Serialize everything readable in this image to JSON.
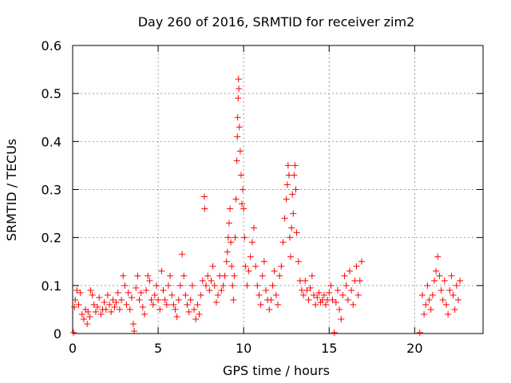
{
  "chart_data": {
    "type": "scatter",
    "title": "Day 260 of 2016, SRMTID for receiver zim2",
    "xlabel": "GPS time / hours",
    "ylabel": "SRMTID / TECUs",
    "xlim": [
      0,
      24
    ],
    "ylim": [
      0,
      0.6
    ],
    "xticks": [
      0,
      5,
      10,
      15,
      20
    ],
    "xtick_labels": [
      "0",
      "5",
      "10",
      "15",
      "20"
    ],
    "yticks": [
      0,
      0.1,
      0.2,
      0.3,
      0.4,
      0.5,
      0.6
    ],
    "ytick_labels": [
      "0",
      "0.1",
      "0.2",
      "0.3",
      "0.4",
      "0.5",
      "0.6"
    ],
    "grid": true,
    "marker": "+",
    "color": "#ff0000",
    "series": [
      {
        "name": "SRMTID",
        "points": [
          [
            0.05,
            0.002
          ],
          [
            0.1,
            0.055
          ],
          [
            0.15,
            0.07
          ],
          [
            0.25,
            0.09
          ],
          [
            0.35,
            0.06
          ],
          [
            0.45,
            0.085
          ],
          [
            0.55,
            0.04
          ],
          [
            0.65,
            0.03
          ],
          [
            0.75,
            0.05
          ],
          [
            0.85,
            0.02
          ],
          [
            0.9,
            0.045
          ],
          [
            1.0,
            0.035
          ],
          [
            1.05,
            0.09
          ],
          [
            1.15,
            0.08
          ],
          [
            1.25,
            0.06
          ],
          [
            1.35,
            0.045
          ],
          [
            1.45,
            0.055
          ],
          [
            1.55,
            0.075
          ],
          [
            1.65,
            0.04
          ],
          [
            1.75,
            0.05
          ],
          [
            1.85,
            0.065
          ],
          [
            1.95,
            0.05
          ],
          [
            2.05,
            0.08
          ],
          [
            2.15,
            0.06
          ],
          [
            2.25,
            0.045
          ],
          [
            2.35,
            0.07
          ],
          [
            2.45,
            0.055
          ],
          [
            2.55,
            0.065
          ],
          [
            2.65,
            0.085
          ],
          [
            2.75,
            0.05
          ],
          [
            2.85,
            0.07
          ],
          [
            2.95,
            0.12
          ],
          [
            3.05,
            0.1
          ],
          [
            3.15,
            0.06
          ],
          [
            3.25,
            0.085
          ],
          [
            3.35,
            0.05
          ],
          [
            3.45,
            0.075
          ],
          [
            3.55,
            0.02
          ],
          [
            3.6,
            0.005
          ],
          [
            3.7,
            0.095
          ],
          [
            3.8,
            0.12
          ],
          [
            3.9,
            0.07
          ],
          [
            4.0,
            0.085
          ],
          [
            4.1,
            0.055
          ],
          [
            4.2,
            0.04
          ],
          [
            4.3,
            0.09
          ],
          [
            4.4,
            0.12
          ],
          [
            4.5,
            0.11
          ],
          [
            4.6,
            0.07
          ],
          [
            4.7,
            0.06
          ],
          [
            4.8,
            0.08
          ],
          [
            4.9,
            0.1
          ],
          [
            5.0,
            0.07
          ],
          [
            5.1,
            0.05
          ],
          [
            5.2,
            0.13
          ],
          [
            5.3,
            0.09
          ],
          [
            5.4,
            0.07
          ],
          [
            5.5,
            0.06
          ],
          [
            5.6,
            0.1
          ],
          [
            5.7,
            0.12
          ],
          [
            5.8,
            0.08
          ],
          [
            5.9,
            0.06
          ],
          [
            6.0,
            0.05
          ],
          [
            6.1,
            0.035
          ],
          [
            6.2,
            0.07
          ],
          [
            6.3,
            0.1
          ],
          [
            6.4,
            0.165
          ],
          [
            6.5,
            0.12
          ],
          [
            6.6,
            0.08
          ],
          [
            6.7,
            0.06
          ],
          [
            6.8,
            0.045
          ],
          [
            6.9,
            0.07
          ],
          [
            7.0,
            0.1
          ],
          [
            7.1,
            0.05
          ],
          [
            7.2,
            0.03
          ],
          [
            7.3,
            0.06
          ],
          [
            7.4,
            0.04
          ],
          [
            7.5,
            0.08
          ],
          [
            7.6,
            0.11
          ],
          [
            7.7,
            0.285
          ],
          [
            7.72,
            0.26
          ],
          [
            7.8,
            0.1
          ],
          [
            7.9,
            0.12
          ],
          [
            8.0,
            0.09
          ],
          [
            8.1,
            0.11
          ],
          [
            8.2,
            0.14
          ],
          [
            8.3,
            0.1
          ],
          [
            8.4,
            0.065
          ],
          [
            8.5,
            0.08
          ],
          [
            8.6,
            0.12
          ],
          [
            8.7,
            0.09
          ],
          [
            8.8,
            0.1
          ],
          [
            8.9,
            0.12
          ],
          [
            9.0,
            0.15
          ],
          [
            9.05,
            0.17
          ],
          [
            9.1,
            0.2
          ],
          [
            9.15,
            0.23
          ],
          [
            9.2,
            0.26
          ],
          [
            9.25,
            0.19
          ],
          [
            9.3,
            0.14
          ],
          [
            9.35,
            0.1
          ],
          [
            9.4,
            0.07
          ],
          [
            9.45,
            0.12
          ],
          [
            9.5,
            0.2
          ],
          [
            9.55,
            0.28
          ],
          [
            9.6,
            0.36
          ],
          [
            9.63,
            0.41
          ],
          [
            9.65,
            0.45
          ],
          [
            9.68,
            0.49
          ],
          [
            9.7,
            0.53
          ],
          [
            9.72,
            0.51
          ],
          [
            9.75,
            0.43
          ],
          [
            9.8,
            0.38
          ],
          [
            9.85,
            0.33
          ],
          [
            9.9,
            0.27
          ],
          [
            9.95,
            0.3
          ],
          [
            10.0,
            0.26
          ],
          [
            10.05,
            0.2
          ],
          [
            10.1,
            0.14
          ],
          [
            10.2,
            0.1
          ],
          [
            10.3,
            0.13
          ],
          [
            10.4,
            0.16
          ],
          [
            10.5,
            0.19
          ],
          [
            10.6,
            0.22
          ],
          [
            10.7,
            0.14
          ],
          [
            10.8,
            0.1
          ],
          [
            10.9,
            0.08
          ],
          [
            11.0,
            0.06
          ],
          [
            11.1,
            0.12
          ],
          [
            11.2,
            0.15
          ],
          [
            11.3,
            0.09
          ],
          [
            11.4,
            0.07
          ],
          [
            11.5,
            0.05
          ],
          [
            11.6,
            0.07
          ],
          [
            11.7,
            0.1
          ],
          [
            11.8,
            0.13
          ],
          [
            11.9,
            0.08
          ],
          [
            12.0,
            0.06
          ],
          [
            12.1,
            0.12
          ],
          [
            12.2,
            0.14
          ],
          [
            12.3,
            0.19
          ],
          [
            12.4,
            0.24
          ],
          [
            12.5,
            0.28
          ],
          [
            12.55,
            0.31
          ],
          [
            12.6,
            0.35
          ],
          [
            12.65,
            0.33
          ],
          [
            12.7,
            0.2
          ],
          [
            12.75,
            0.16
          ],
          [
            12.8,
            0.22
          ],
          [
            12.85,
            0.29
          ],
          [
            12.9,
            0.25
          ],
          [
            12.95,
            0.33
          ],
          [
            13.0,
            0.35
          ],
          [
            13.05,
            0.3
          ],
          [
            13.1,
            0.21
          ],
          [
            13.2,
            0.15
          ],
          [
            13.3,
            0.11
          ],
          [
            13.4,
            0.09
          ],
          [
            13.5,
            0.08
          ],
          [
            13.6,
            0.11
          ],
          [
            13.7,
            0.09
          ],
          [
            13.8,
            0.07
          ],
          [
            13.9,
            0.095
          ],
          [
            14.0,
            0.12
          ],
          [
            14.1,
            0.08
          ],
          [
            14.2,
            0.06
          ],
          [
            14.3,
            0.075
          ],
          [
            14.4,
            0.085
          ],
          [
            14.5,
            0.065
          ],
          [
            14.6,
            0.07
          ],
          [
            14.7,
            0.08
          ],
          [
            14.8,
            0.06
          ],
          [
            14.9,
            0.07
          ],
          [
            15.0,
            0.085
          ],
          [
            15.1,
            0.1
          ],
          [
            15.2,
            0.07
          ],
          [
            15.3,
            0.002
          ],
          [
            15.4,
            0.065
          ],
          [
            15.5,
            0.09
          ],
          [
            15.6,
            0.05
          ],
          [
            15.7,
            0.03
          ],
          [
            15.8,
            0.08
          ],
          [
            15.9,
            0.12
          ],
          [
            16.0,
            0.1
          ],
          [
            16.1,
            0.07
          ],
          [
            16.2,
            0.13
          ],
          [
            16.3,
            0.09
          ],
          [
            16.4,
            0.06
          ],
          [
            16.5,
            0.11
          ],
          [
            16.6,
            0.14
          ],
          [
            16.7,
            0.08
          ],
          [
            16.8,
            0.11
          ],
          [
            16.9,
            0.15
          ],
          [
            20.3,
            0.002
          ],
          [
            20.45,
            0.08
          ],
          [
            20.55,
            0.04
          ],
          [
            20.65,
            0.06
          ],
          [
            20.75,
            0.1
          ],
          [
            20.85,
            0.07
          ],
          [
            20.95,
            0.05
          ],
          [
            21.05,
            0.08
          ],
          [
            21.15,
            0.11
          ],
          [
            21.25,
            0.13
          ],
          [
            21.35,
            0.16
          ],
          [
            21.45,
            0.12
          ],
          [
            21.55,
            0.09
          ],
          [
            21.65,
            0.07
          ],
          [
            21.75,
            0.11
          ],
          [
            21.85,
            0.06
          ],
          [
            21.95,
            0.04
          ],
          [
            22.05,
            0.09
          ],
          [
            22.15,
            0.12
          ],
          [
            22.25,
            0.08
          ],
          [
            22.35,
            0.05
          ],
          [
            22.45,
            0.1
          ],
          [
            22.55,
            0.07
          ],
          [
            22.65,
            0.11
          ]
        ]
      }
    ]
  }
}
